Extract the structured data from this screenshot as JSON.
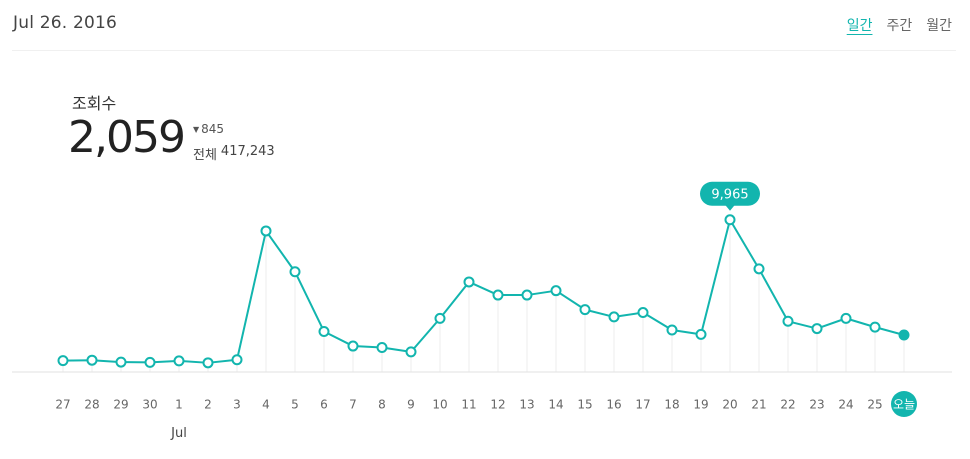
{
  "header": {
    "date": "Jul 26. 2016",
    "periods": [
      "일간",
      "주간",
      "월간"
    ],
    "active_period": "일간"
  },
  "metric": {
    "label": "조회수",
    "value": "2,059",
    "delta": "845",
    "total_label": "전체",
    "total_value": "417,243"
  },
  "colors": {
    "accent": "#12b5ae",
    "guide": "#eeeeee",
    "axis": "#e2e2e2"
  },
  "chart_data": {
    "type": "line",
    "categories": [
      "27",
      "28",
      "29",
      "30",
      "1",
      "2",
      "3",
      "4",
      "5",
      "6",
      "7",
      "8",
      "9",
      "10",
      "11",
      "12",
      "13",
      "14",
      "15",
      "16",
      "17",
      "18",
      "19",
      "20",
      "21",
      "22",
      "23",
      "24",
      "25",
      "오늘"
    ],
    "month_label": "Jul",
    "month_label_at": "1",
    "series": [
      {
        "values": [
          300,
          330,
          200,
          180,
          280,
          150,
          360,
          9200,
          6400,
          2300,
          1300,
          1200,
          900,
          3200,
          5700,
          4800,
          4800,
          5100,
          3800,
          3300,
          3600,
          2400,
          2100,
          9965,
          6600,
          3000,
          2500,
          3200,
          2600,
          2059
        ]
      }
    ],
    "highlight": {
      "category": "20",
      "label": "9,965"
    },
    "today_marker": "오늘",
    "ylim": [
      0,
      10500
    ],
    "grid": false
  }
}
